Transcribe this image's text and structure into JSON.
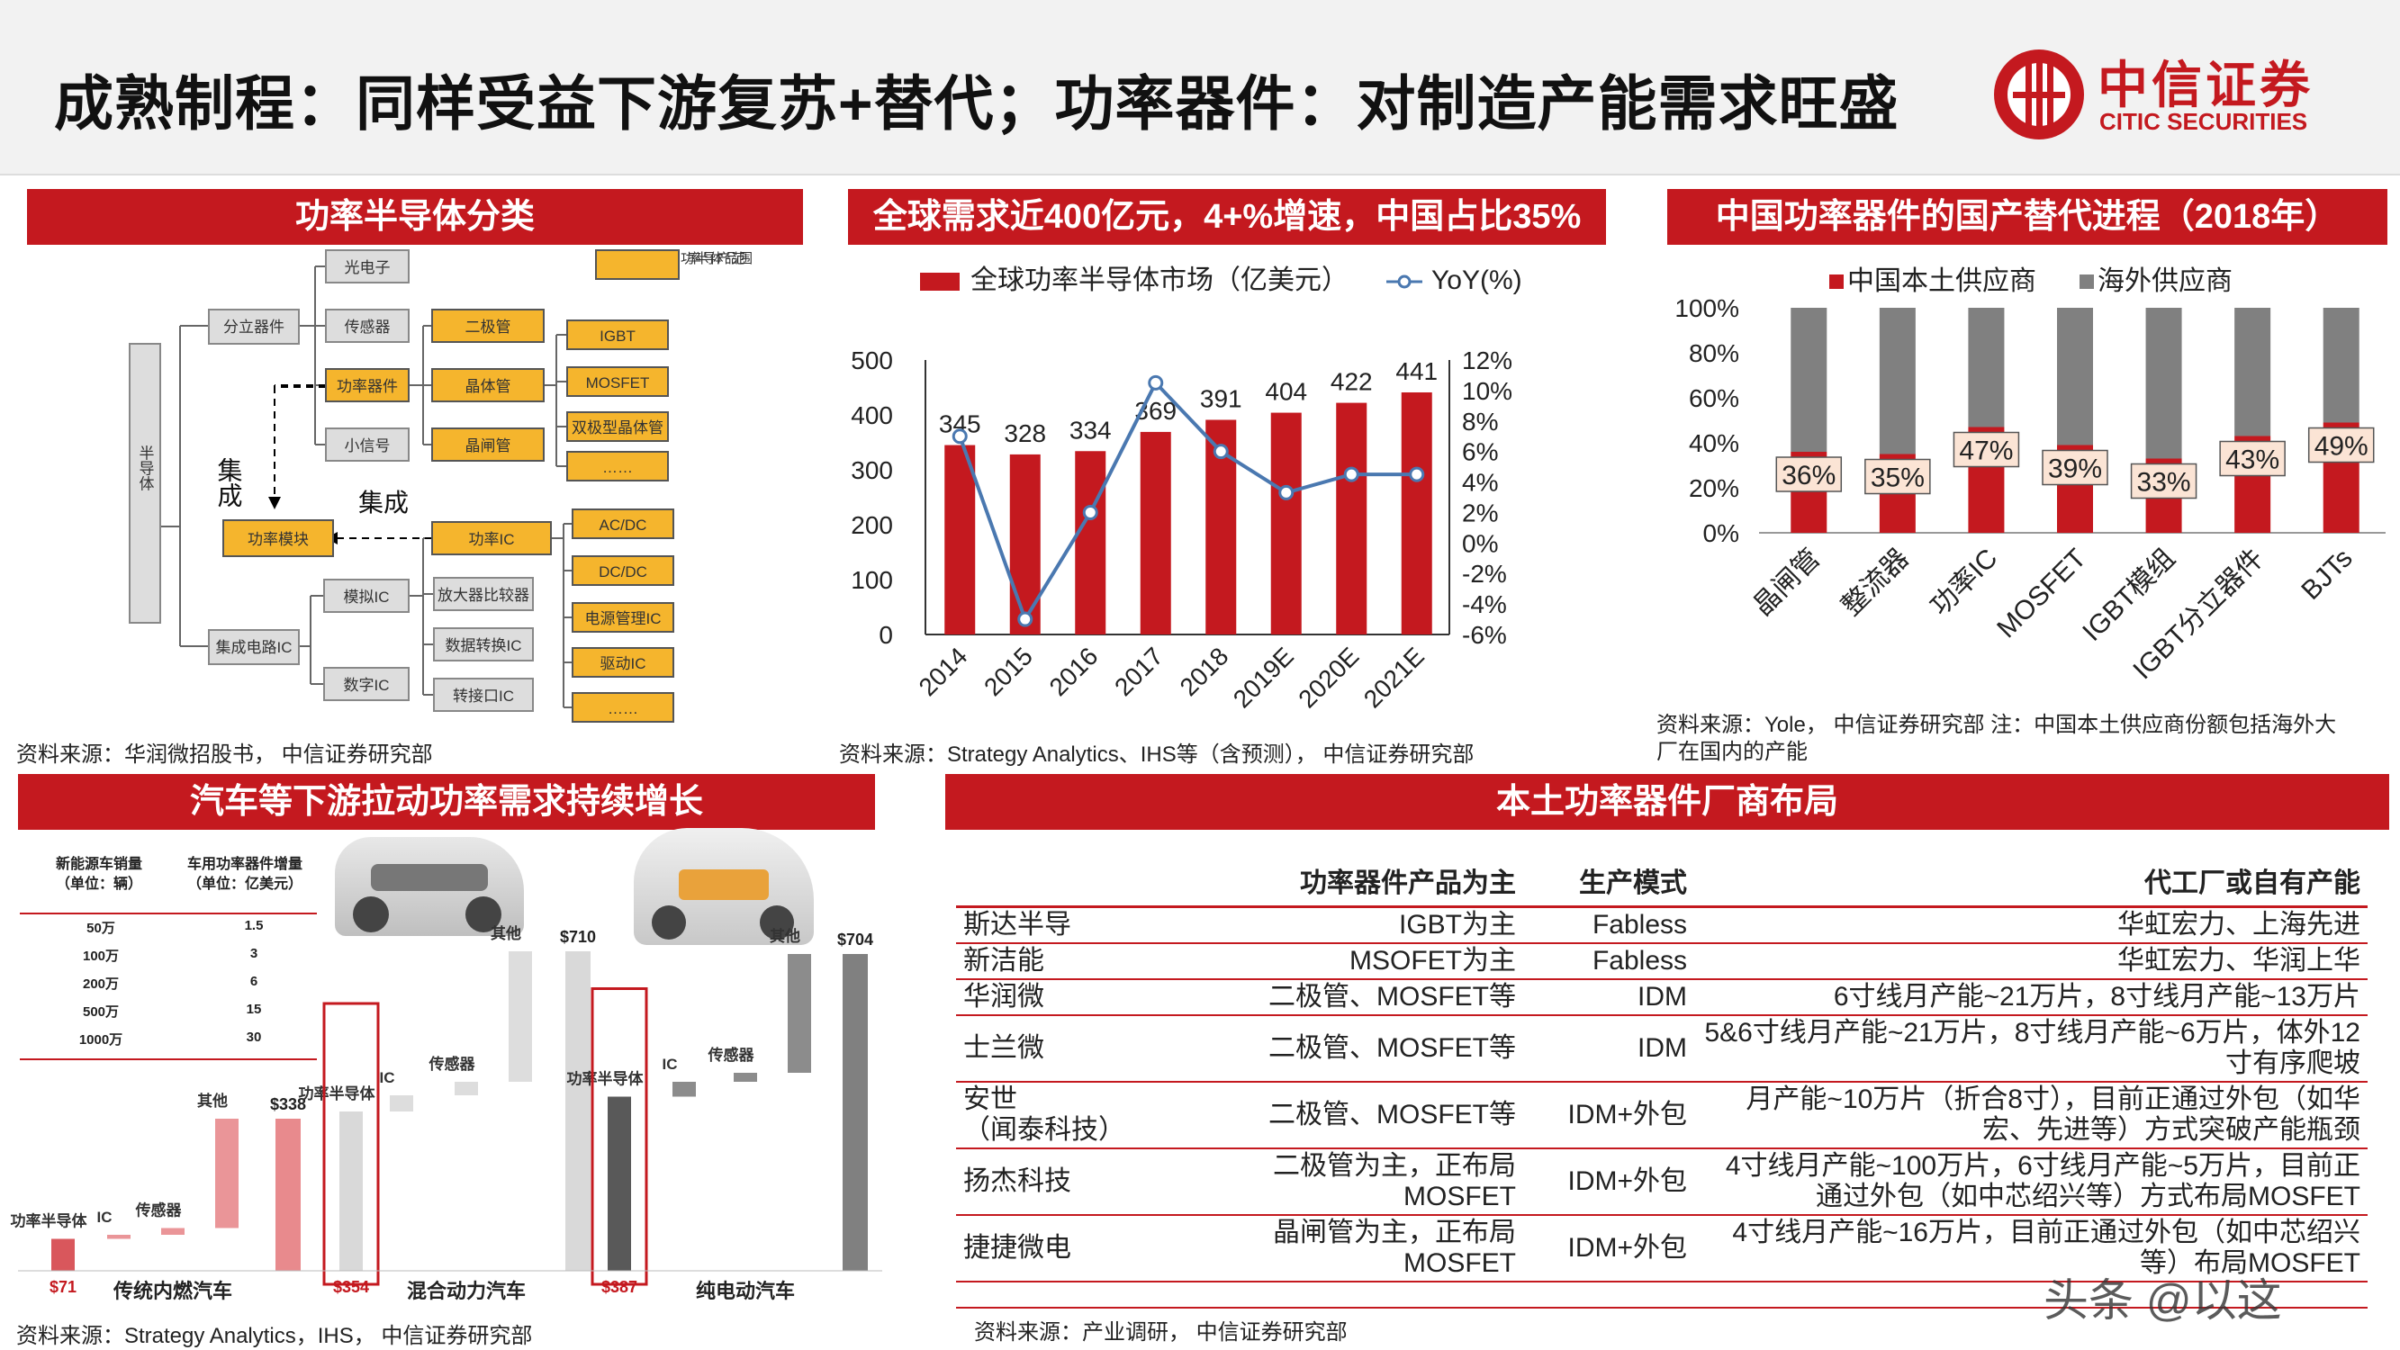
{
  "header": {
    "title": "成熟制程：同样受益下游复苏+替代；功率器件：对制造产能需求旺盛",
    "logo_cn": "中信证券",
    "logo_en": "CITIC SECURITIES"
  },
  "panels": {
    "p1": {
      "title": "功率半导体分类",
      "source": "资料来源：华润微招股书， 中信证券研究部"
    },
    "p2": {
      "title": "全球需求近400亿元，4+%增速，中国占比35%",
      "source": "资料来源：Strategy Analytics、IHS等（含预测）， 中信证券研究部"
    },
    "p3": {
      "title": "中国功率器件的国产替代进程（2018年）",
      "source_l1": "资料来源：Yole， 中信证券研究部  注：中国本土供应商份额包括海外大",
      "source_l2": "厂在国内的产能"
    },
    "p4": {
      "title": "汽车等下游拉动功率需求持续增长",
      "source": "资料来源：Strategy Analytics，IHS， 中信证券研究部"
    },
    "p5": {
      "title": "本土功率器件厂商布局",
      "source": "资料来源：产业调研， 中信证券研究部"
    }
  },
  "diagram": {
    "root": "半导体",
    "discrete": "分立器件",
    "ic": "集成电路IC",
    "opto": "光电子",
    "sensor": "传感器",
    "power_device": "功率器件",
    "small_signal": "小信号",
    "diode": "二极管",
    "transistor": "晶体管",
    "thyristor": "晶闸管",
    "igbt": "IGBT",
    "mosfet": "MOSFET",
    "bjt": "双极型晶体管",
    "dots1": "……",
    "module": "功率模块",
    "power_ic": "功率IC",
    "analog_ic": "模拟IC",
    "digital_ic": "数字IC",
    "amp": "放大器比较器",
    "dac": "数据转换IC",
    "iface": "转接口IC",
    "acdc": "AC/DC",
    "dcdc": "DC/DC",
    "pmic": "电源管理IC",
    "driver": "驱动IC",
    "dots2": "……",
    "legend": "功率半导体产品范围",
    "integ1": "集成",
    "integ2": "集成"
  },
  "chart_data": [
    {
      "type": "bar+line",
      "title": "全球需求近400亿元，4+%增速，中国占比35%",
      "categories": [
        "2014",
        "2015",
        "2016",
        "2017",
        "2018",
        "2019E",
        "2020E",
        "2021E"
      ],
      "series": [
        {
          "name": "全球功率半导体市场（亿美元）",
          "values": [
            345,
            328,
            334,
            369,
            391,
            404,
            422,
            441
          ]
        },
        {
          "name": "YoY(%)",
          "values": [
            7,
            -5,
            2,
            10.5,
            6,
            3.3,
            4.5,
            4.5
          ]
        }
      ],
      "ylim": [
        0,
        500
      ],
      "yticks": [
        "500",
        "400",
        "300",
        "200",
        "100",
        "0"
      ],
      "y2lim": [
        -6,
        12
      ],
      "y2ticks": [
        "12%",
        "10%",
        "8%",
        "6%",
        "4%",
        "2%",
        "0%",
        "-2%",
        "-4%",
        "-6%"
      ]
    },
    {
      "type": "stacked-bar",
      "title": "中国功率器件的国产替代进程（2018年）",
      "categories": [
        "晶闸管",
        "整流器",
        "功率IC",
        "MOSFET",
        "IGBT模组",
        "IGBT分立器件",
        "BJTs"
      ],
      "series": [
        {
          "name": "中国本土供应商",
          "values": [
            36,
            35,
            47,
            39,
            33,
            43,
            49
          ]
        },
        {
          "name": "海外供应商",
          "values": [
            64,
            65,
            53,
            61,
            67,
            57,
            51
          ]
        }
      ],
      "labels": [
        "36%",
        "35%",
        "47%",
        "39%",
        "33%",
        "43%",
        "49%"
      ],
      "yticks": [
        "100%",
        "80%",
        "60%",
        "40%",
        "20%",
        "0%"
      ]
    },
    {
      "type": "waterfall",
      "title": "汽车等下游拉动功率需求持续增长",
      "groups": [
        {
          "name": "传统内燃汽车",
          "base": 71,
          "steps": [
            {
              "label": "功率半导体",
              "value": 71
            },
            {
              "label": "IC",
              "value": 80
            },
            {
              "label": "传感器",
              "value": 95
            },
            {
              "label": "其他",
              "value": 338
            }
          ],
          "total": 338
        },
        {
          "name": "混合动力汽车",
          "base": 354,
          "steps": [
            {
              "label": "功率半导体",
              "value": 354
            },
            {
              "label": "IC",
              "value": 390
            },
            {
              "label": "传感器",
              "value": 420
            },
            {
              "label": "其他",
              "value": 710
            }
          ],
          "total": 710
        },
        {
          "name": "纯电动汽车",
          "base": 387,
          "steps": [
            {
              "label": "功率半导体",
              "value": 387
            },
            {
              "label": "IC",
              "value": 420
            },
            {
              "label": "传感器",
              "value": 440
            },
            {
              "label": "其他",
              "value": 704
            }
          ],
          "total": 704
        }
      ],
      "value_labels": [
        "$71",
        "$338",
        "$354",
        "$710",
        "$387",
        "$704"
      ]
    }
  ],
  "car_table": {
    "h1": "新能源车销量",
    "h1b": "（单位：辆）",
    "h2": "车用功率器件增量",
    "h2b": "（单位：亿美元）",
    "rows": [
      [
        "50万",
        "1.5"
      ],
      [
        "100万",
        "3"
      ],
      [
        "200万",
        "6"
      ],
      [
        "500万",
        "15"
      ],
      [
        "1000万",
        "30"
      ]
    ]
  },
  "table": {
    "headers": [
      "",
      "功率器件产品为主",
      "生产模式",
      "代工厂或自有产能"
    ],
    "rows": [
      [
        "斯达半导",
        "IGBT为主",
        "Fabless",
        "华虹宏力、上海先进"
      ],
      [
        "新洁能",
        "MSOFET为主",
        "Fabless",
        "华虹宏力、华润上华"
      ],
      [
        "华润微",
        "二极管、MOSFET等",
        "IDM",
        "6寸线月产能~21万片，8寸线月产能~13万片"
      ],
      [
        "士兰微",
        "二极管、MOSFET等",
        "IDM",
        "5&6寸线月产能~21万片，8寸线月产能~6万片，体外12寸有序爬坡"
      ],
      [
        "安世（闻泰科技）",
        "二极管、MOSFET等",
        "IDM+外包",
        "月产能~10万片（折合8寸），目前正通过外包（如华宏、先进等）方式突破产能瓶颈"
      ],
      [
        "扬杰科技",
        "二极管为主，正布局MOSFET",
        "IDM+外包",
        "4寸线月产能~100万片，6寸线月产能~5万片，目前正通过外包（如中芯绍兴等）方式布局MOSFET"
      ],
      [
        "捷捷微电",
        "晶闸管为主，正布局MOSFET",
        "IDM+外包",
        "4寸线月产能~16万片，目前正通过外包（如中芯绍兴等）布局MOSFET"
      ]
    ]
  },
  "watermark": "头条 @以这",
  "colors": {
    "red": "#c4191f",
    "gray": "#808080",
    "orange": "#f5b52d"
  }
}
